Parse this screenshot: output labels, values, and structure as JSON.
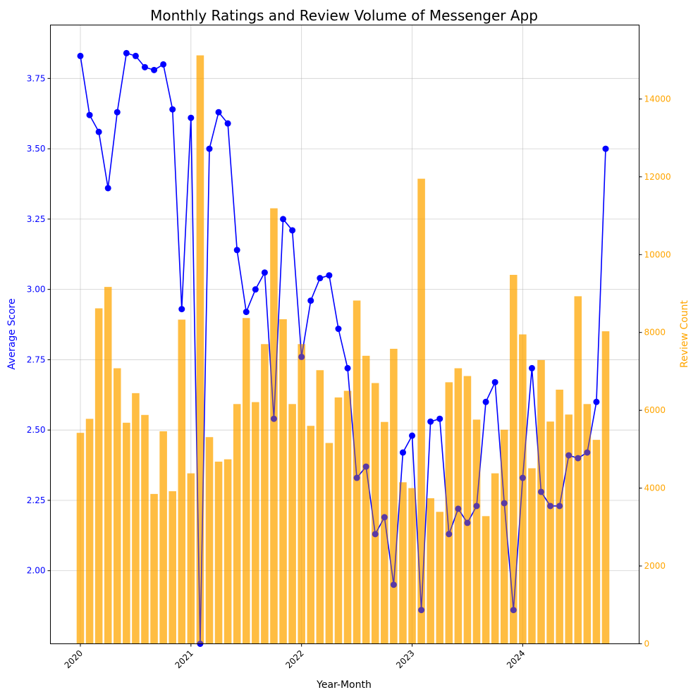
{
  "chart_data": {
    "type": "bar+line",
    "title": "Monthly Ratings and Review Volume of Messenger App",
    "xlabel": "Year-Month",
    "ylabel_left": "Average Score",
    "ylabel_right": "Review Count",
    "x_ticks": [
      "2020",
      "2021",
      "2022",
      "2023",
      "2024"
    ],
    "y_left_ticks": [
      "2.00",
      "2.25",
      "2.50",
      "2.75",
      "3.00",
      "3.25",
      "3.50",
      "3.75"
    ],
    "y_right_ticks": [
      "0",
      "2000",
      "4000",
      "6000",
      "8000",
      "10000",
      "12000",
      "14000"
    ],
    "ylim_left": [
      1.74,
      3.94
    ],
    "ylim_right": [
      0,
      15900
    ],
    "grid": true,
    "colors": {
      "line": "#0000ff",
      "bar": "#ffa500",
      "left_axis": "#0000ff",
      "right_axis": "#ffa500"
    },
    "months": [
      "2020-01",
      "2020-02",
      "2020-03",
      "2020-04",
      "2020-05",
      "2020-06",
      "2020-07",
      "2020-08",
      "2020-09",
      "2020-10",
      "2020-11",
      "2020-12",
      "2021-01",
      "2021-02",
      "2021-03",
      "2021-04",
      "2021-05",
      "2021-06",
      "2021-07",
      "2021-08",
      "2021-09",
      "2021-10",
      "2021-11",
      "2021-12",
      "2022-01",
      "2022-02",
      "2022-03",
      "2022-04",
      "2022-05",
      "2022-06",
      "2022-07",
      "2022-08",
      "2022-09",
      "2022-10",
      "2022-11",
      "2022-12",
      "2023-01",
      "2023-02",
      "2023-03",
      "2023-04",
      "2023-05",
      "2023-06",
      "2023-07",
      "2023-08",
      "2023-09",
      "2023-10",
      "2023-11",
      "2023-12",
      "2024-01",
      "2024-02",
      "2024-03",
      "2024-04",
      "2024-05",
      "2024-06",
      "2024-07",
      "2024-08",
      "2024-09",
      "2024-10"
    ],
    "series": [
      {
        "name": "Average Score",
        "kind": "line",
        "values": [
          3.83,
          3.62,
          3.56,
          3.36,
          3.63,
          3.84,
          3.83,
          3.79,
          3.78,
          3.8,
          3.64,
          2.93,
          3.61,
          1.74,
          3.5,
          3.63,
          3.59,
          3.14,
          2.92,
          3.0,
          3.06,
          2.54,
          3.25,
          3.21,
          2.76,
          2.96,
          3.04,
          3.05,
          2.86,
          2.72,
          2.33,
          2.37,
          2.13,
          2.19,
          1.95,
          2.42,
          2.48,
          1.86,
          2.53,
          2.54,
          2.13,
          2.22,
          2.17,
          2.23,
          2.6,
          2.67,
          2.24,
          1.86,
          2.33,
          2.72,
          2.28,
          2.23,
          2.23,
          2.41,
          2.4,
          2.42,
          2.6,
          3.5
        ]
      },
      {
        "name": "Review Count",
        "kind": "bar",
        "values": [
          5420,
          5780,
          8620,
          9170,
          7080,
          5680,
          6440,
          5880,
          3850,
          5460,
          3920,
          8330,
          4380,
          15120,
          5310,
          4680,
          4740,
          6160,
          8370,
          6210,
          7700,
          11190,
          8340,
          6160,
          7700,
          5600,
          7030,
          5160,
          6330,
          6500,
          8820,
          7400,
          6700,
          5700,
          7580,
          4150,
          4000,
          11950,
          3740,
          3390,
          6720,
          7080,
          6880,
          5760,
          3280,
          4380,
          5500,
          9480,
          7950,
          4510,
          7290,
          5710,
          6530,
          5890,
          8930,
          6160,
          5240,
          8030
        ]
      }
    ]
  }
}
